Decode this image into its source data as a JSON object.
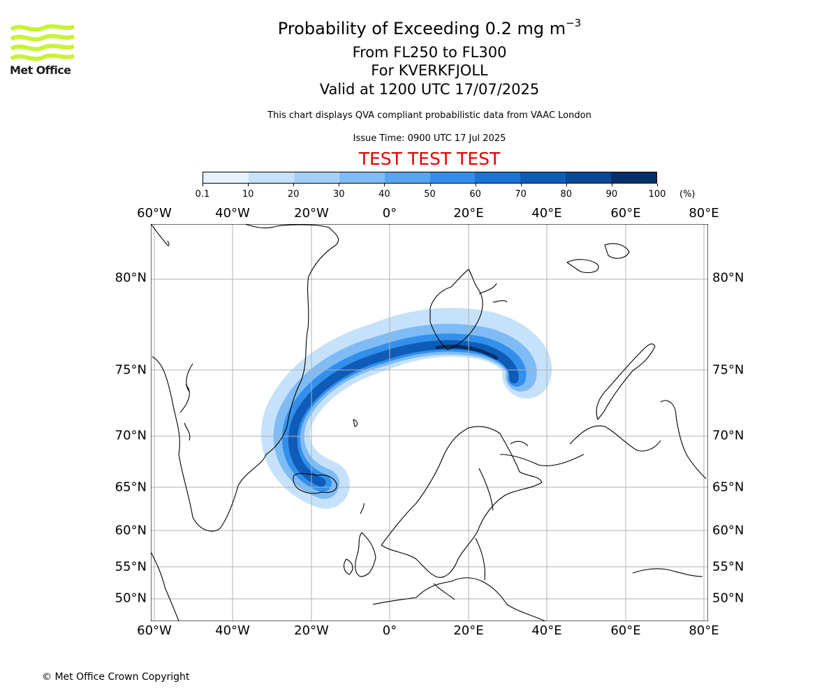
{
  "title": {
    "main_prefix": "Probability of Exceeding 0.2 mg m",
    "main_superscript": "−3",
    "levels": "From FL250 to FL300",
    "volcano": "For KVERKFJOLL",
    "valid": "Valid at 1200 UTC 17/07/2025"
  },
  "subtitle": "This chart displays QVA compliant probabilistic data from VAAC London",
  "issue_time": "Issue Time: 0900 UTC 17 Jul 2025",
  "test_banner": "TEST TEST TEST",
  "logo": {
    "text": "Met Office",
    "color": "#c8f23a"
  },
  "colorbar": {
    "units": "(%)",
    "ticks": [
      "0.1",
      "10",
      "20",
      "30",
      "40",
      "50",
      "60",
      "70",
      "80",
      "90",
      "100"
    ],
    "colors": [
      "#e6f2fd",
      "#c6e2fb",
      "#a4d0f8",
      "#7fbbf5",
      "#58a6f1",
      "#3290ec",
      "#1a74d6",
      "#0f5cb8",
      "#0a4895",
      "#052f66"
    ]
  },
  "map": {
    "lon_labels": [
      "60°W",
      "40°W",
      "20°W",
      "0°",
      "20°E",
      "40°E",
      "60°E",
      "80°E"
    ],
    "lat_labels": [
      "80°N",
      "75°N",
      "70°N",
      "65°N",
      "60°N",
      "55°N",
      "50°N"
    ],
    "plume_colors": {
      "outer": "#c6e2fb",
      "mid": "#7fbbf5",
      "inner": "#3290ec",
      "core": "#0f5cb8",
      "peak": "#052f66"
    }
  },
  "copyright": "© Met Office Crown Copyright"
}
